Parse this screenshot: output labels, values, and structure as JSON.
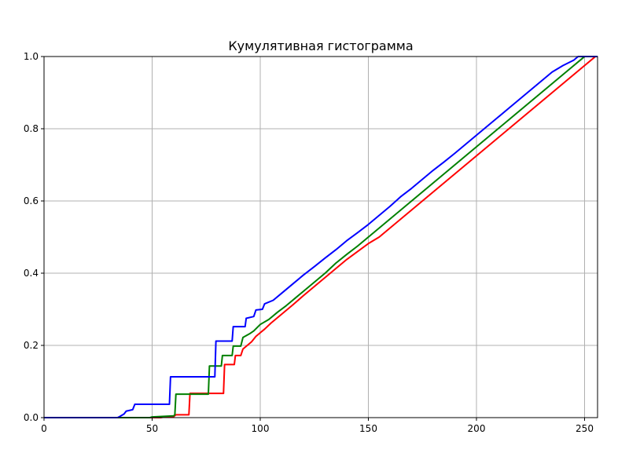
{
  "chart_data": {
    "type": "line",
    "title": "Кумулятивная гистограмма",
    "xlabel": "",
    "ylabel": "",
    "xlim": [
      0,
      256
    ],
    "ylim": [
      0,
      1.0
    ],
    "grid": true,
    "x_ticks": [
      "0",
      "50",
      "100",
      "150",
      "200",
      "250"
    ],
    "y_ticks": [
      "0.0",
      "0.2",
      "0.4",
      "0.6",
      "0.8",
      "1.0"
    ],
    "series": [
      {
        "color": "#ff0000",
        "points": [
          [
            0,
            0
          ],
          [
            54,
            0
          ],
          [
            55,
            0.001
          ],
          [
            60,
            0.003
          ],
          [
            61,
            0.008
          ],
          [
            67,
            0.008
          ],
          [
            67.5,
            0.067
          ],
          [
            83,
            0.067
          ],
          [
            83.5,
            0.147
          ],
          [
            88,
            0.147
          ],
          [
            88.5,
            0.172
          ],
          [
            91,
            0.172
          ],
          [
            92,
            0.19
          ],
          [
            94,
            0.2
          ],
          [
            96,
            0.21
          ],
          [
            98,
            0.225
          ],
          [
            100,
            0.235
          ],
          [
            102,
            0.245
          ],
          [
            105,
            0.262
          ],
          [
            110,
            0.287
          ],
          [
            115,
            0.312
          ],
          [
            120,
            0.338
          ],
          [
            125,
            0.363
          ],
          [
            130,
            0.388
          ],
          [
            135,
            0.413
          ],
          [
            140,
            0.438
          ],
          [
            145,
            0.46
          ],
          [
            150,
            0.482
          ],
          [
            155,
            0.5
          ],
          [
            160,
            0.525
          ],
          [
            165,
            0.55
          ],
          [
            170,
            0.575
          ],
          [
            175,
            0.6
          ],
          [
            180,
            0.625
          ],
          [
            185,
            0.65
          ],
          [
            190,
            0.675
          ],
          [
            195,
            0.7
          ],
          [
            200,
            0.725
          ],
          [
            205,
            0.75
          ],
          [
            210,
            0.775
          ],
          [
            215,
            0.8
          ],
          [
            220,
            0.825
          ],
          [
            225,
            0.85
          ],
          [
            230,
            0.875
          ],
          [
            235,
            0.9
          ],
          [
            240,
            0.925
          ],
          [
            245,
            0.95
          ],
          [
            250,
            0.975
          ],
          [
            254,
            0.995
          ],
          [
            255,
            1.0
          ],
          [
            256,
            1.0
          ]
        ]
      },
      {
        "color": "#008000",
        "points": [
          [
            0,
            0
          ],
          [
            49,
            0
          ],
          [
            50,
            0.002
          ],
          [
            60,
            0.005
          ],
          [
            60.5,
            0.008
          ],
          [
            61,
            0.065
          ],
          [
            76,
            0.065
          ],
          [
            76.5,
            0.143
          ],
          [
            82,
            0.143
          ],
          [
            82.5,
            0.172
          ],
          [
            87,
            0.172
          ],
          [
            87.5,
            0.198
          ],
          [
            91,
            0.198
          ],
          [
            92,
            0.222
          ],
          [
            95,
            0.232
          ],
          [
            97,
            0.24
          ],
          [
            100,
            0.258
          ],
          [
            104,
            0.272
          ],
          [
            108,
            0.292
          ],
          [
            112,
            0.31
          ],
          [
            116,
            0.33
          ],
          [
            120,
            0.35
          ],
          [
            125,
            0.375
          ],
          [
            130,
            0.4
          ],
          [
            135,
            0.428
          ],
          [
            140,
            0.452
          ],
          [
            145,
            0.475
          ],
          [
            150,
            0.5
          ],
          [
            155,
            0.525
          ],
          [
            160,
            0.55
          ],
          [
            165,
            0.575
          ],
          [
            170,
            0.6
          ],
          [
            175,
            0.625
          ],
          [
            180,
            0.65
          ],
          [
            185,
            0.675
          ],
          [
            190,
            0.7
          ],
          [
            195,
            0.725
          ],
          [
            200,
            0.75
          ],
          [
            205,
            0.775
          ],
          [
            210,
            0.8
          ],
          [
            215,
            0.825
          ],
          [
            220,
            0.85
          ],
          [
            225,
            0.875
          ],
          [
            230,
            0.9
          ],
          [
            235,
            0.925
          ],
          [
            240,
            0.95
          ],
          [
            245,
            0.975
          ],
          [
            249,
            0.995
          ],
          [
            250,
            1.0
          ],
          [
            256,
            1.0
          ]
        ]
      },
      {
        "color": "#0000ff",
        "points": [
          [
            0,
            0
          ],
          [
            34,
            0
          ],
          [
            35,
            0.003
          ],
          [
            37,
            0.01
          ],
          [
            38,
            0.018
          ],
          [
            41,
            0.022
          ],
          [
            42,
            0.037
          ],
          [
            58,
            0.037
          ],
          [
            58.5,
            0.113
          ],
          [
            79,
            0.113
          ],
          [
            79.5,
            0.212
          ],
          [
            87,
            0.212
          ],
          [
            87.5,
            0.252
          ],
          [
            93,
            0.252
          ],
          [
            93.5,
            0.275
          ],
          [
            97,
            0.28
          ],
          [
            98,
            0.298
          ],
          [
            101,
            0.3
          ],
          [
            102,
            0.315
          ],
          [
            106,
            0.325
          ],
          [
            110,
            0.345
          ],
          [
            115,
            0.37
          ],
          [
            120,
            0.395
          ],
          [
            125,
            0.418
          ],
          [
            130,
            0.442
          ],
          [
            135,
            0.465
          ],
          [
            140,
            0.49
          ],
          [
            145,
            0.512
          ],
          [
            150,
            0.535
          ],
          [
            155,
            0.56
          ],
          [
            160,
            0.585
          ],
          [
            165,
            0.612
          ],
          [
            170,
            0.635
          ],
          [
            175,
            0.66
          ],
          [
            180,
            0.685
          ],
          [
            185,
            0.708
          ],
          [
            190,
            0.732
          ],
          [
            195,
            0.757
          ],
          [
            200,
            0.782
          ],
          [
            205,
            0.807
          ],
          [
            210,
            0.832
          ],
          [
            215,
            0.857
          ],
          [
            220,
            0.882
          ],
          [
            225,
            0.907
          ],
          [
            230,
            0.932
          ],
          [
            235,
            0.957
          ],
          [
            240,
            0.975
          ],
          [
            245,
            0.99
          ],
          [
            247,
            1.0
          ],
          [
            256,
            1.0
          ]
        ]
      }
    ]
  }
}
